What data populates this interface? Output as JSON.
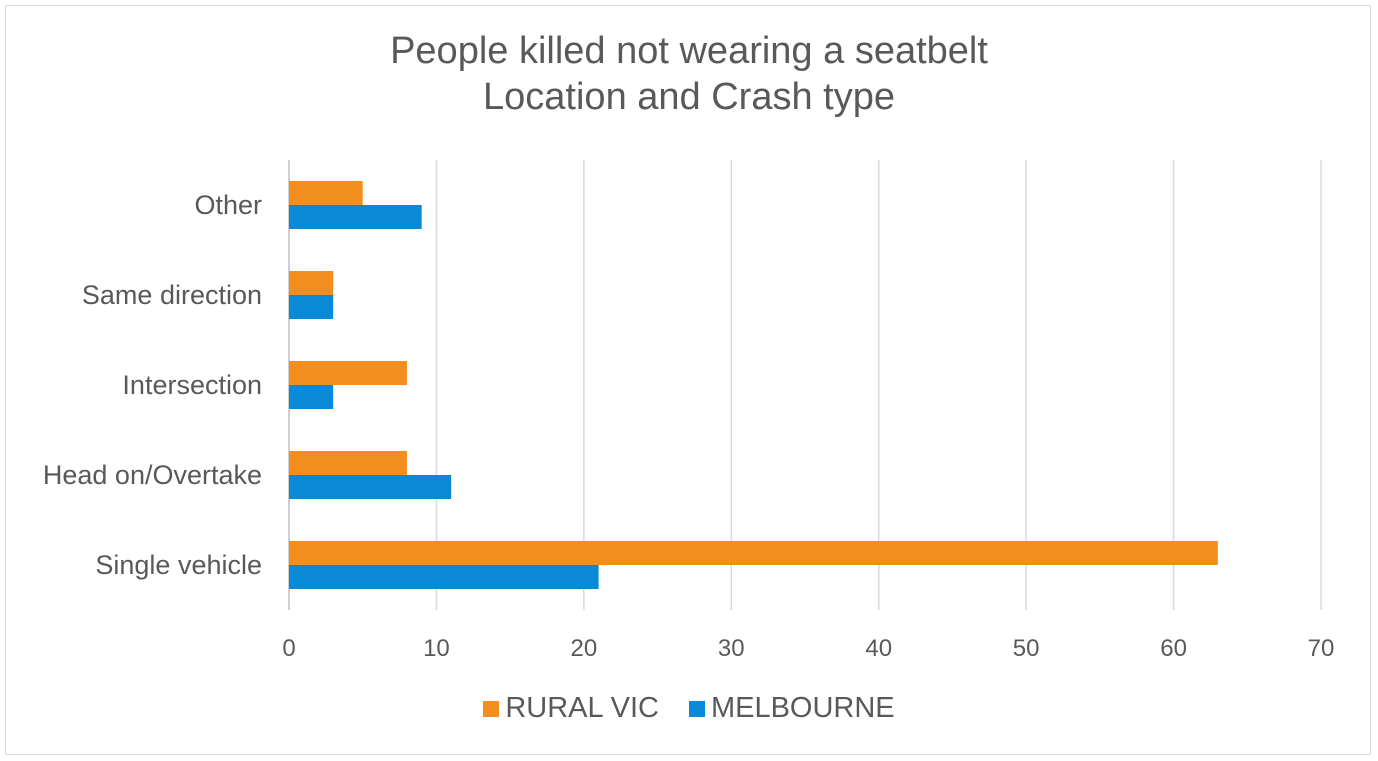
{
  "chart_data": {
    "type": "bar",
    "orientation": "horizontal",
    "title_lines": [
      "People killed not wearing a seatbelt",
      "Location and Crash type"
    ],
    "categories": [
      "Single vehicle",
      "Head on/Overtake",
      "Intersection",
      "Same direction",
      "Other"
    ],
    "series": [
      {
        "name": "RURAL VIC",
        "color": "#f28e1e",
        "values": [
          63,
          8,
          8,
          3,
          5
        ]
      },
      {
        "name": "MELBOURNE",
        "color": "#0a8ad6",
        "values": [
          21,
          11,
          3,
          3,
          9
        ]
      }
    ],
    "xlim": [
      0,
      70
    ],
    "xticks": [
      0,
      10,
      20,
      30,
      40,
      50,
      60,
      70
    ],
    "grid": true,
    "legend_position": "bottom"
  }
}
